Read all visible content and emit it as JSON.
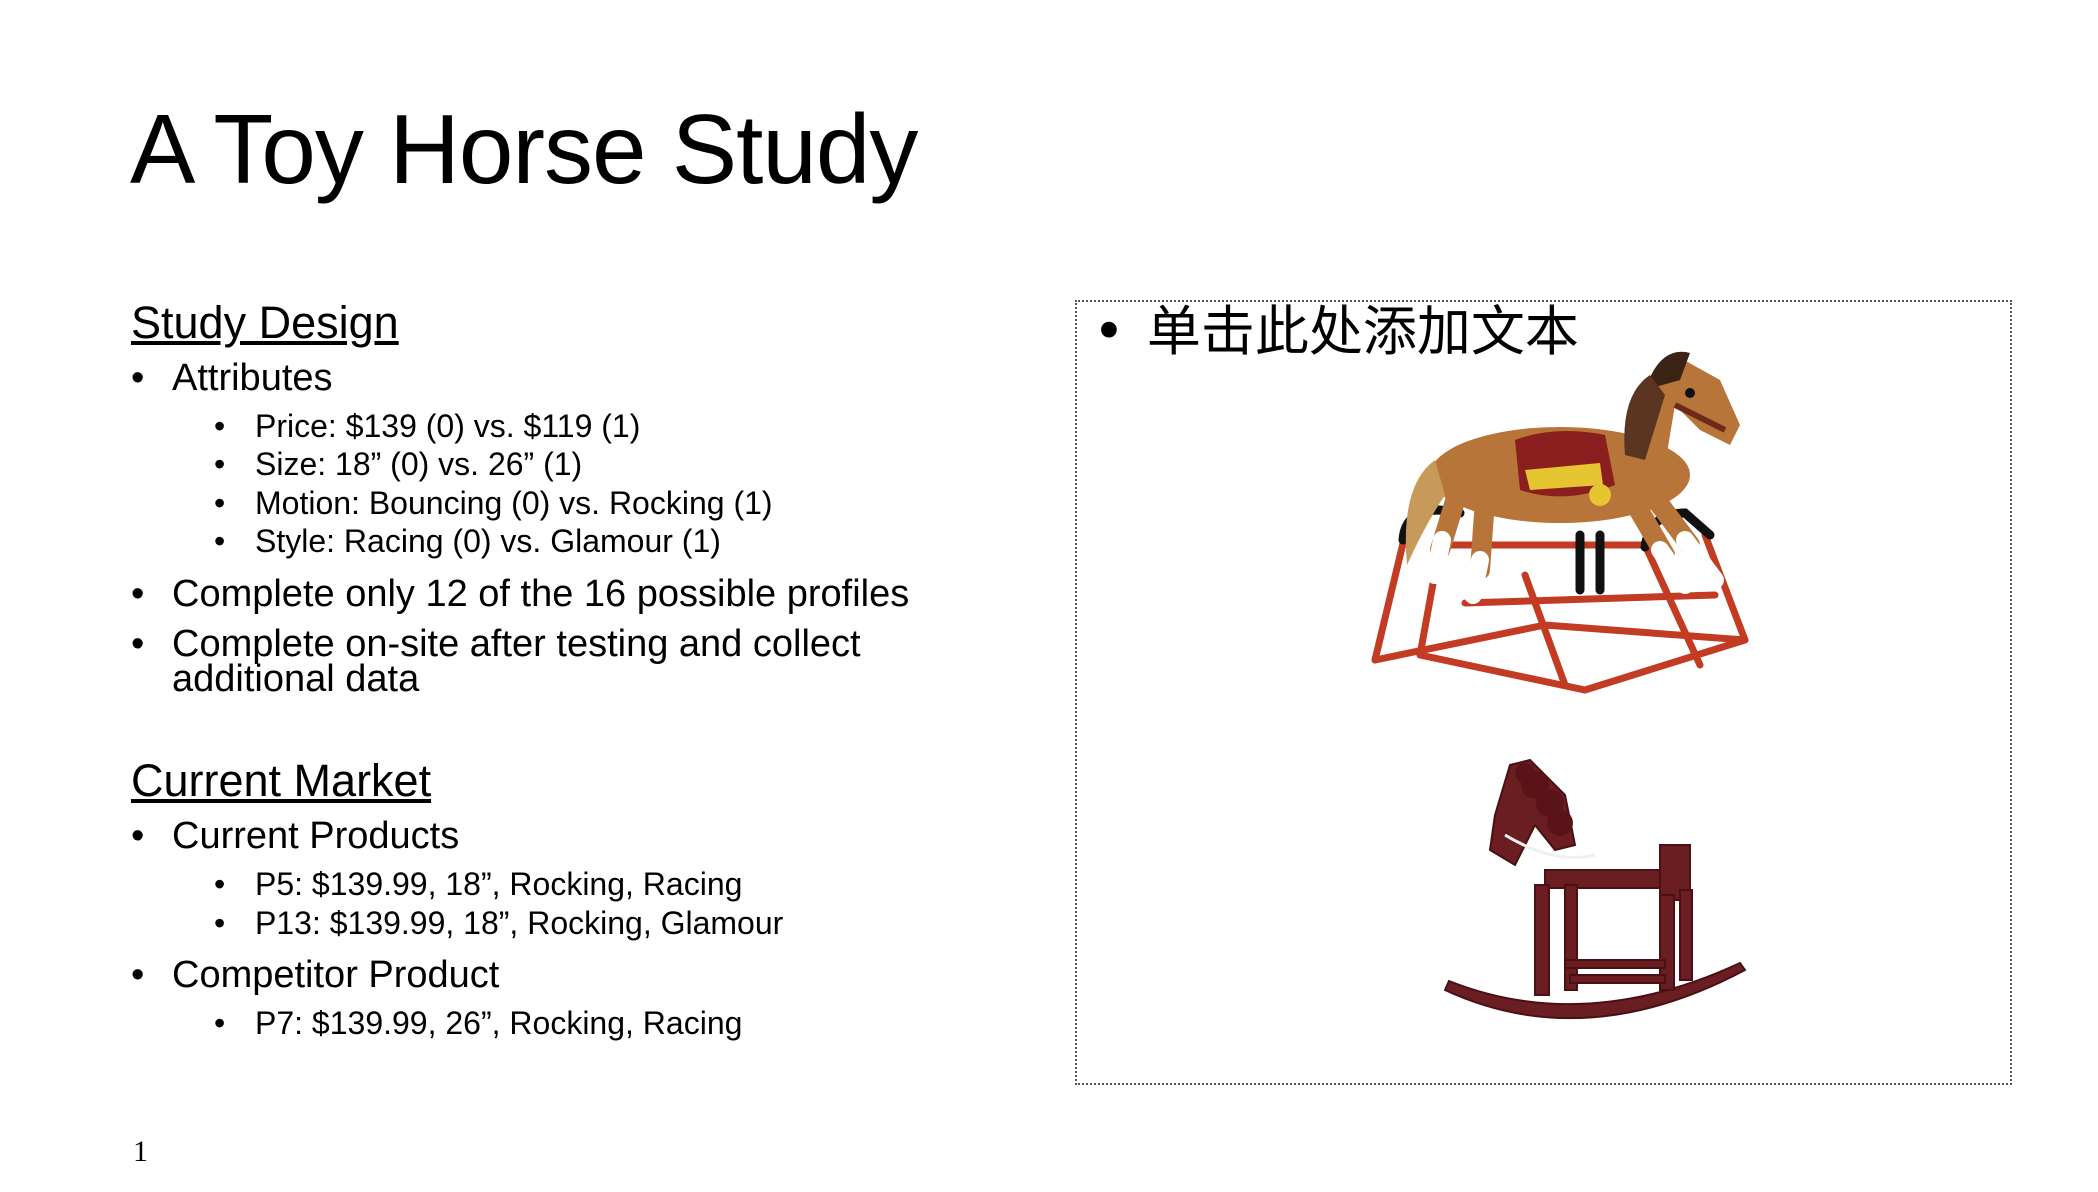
{
  "slide": {
    "title": "A Toy Horse Study",
    "page_number": "1"
  },
  "study_design": {
    "heading": "Study Design",
    "attributes_label": "Attributes",
    "attributes": [
      "Price: $139 (0) vs. $119 (1)",
      "Size: 18” (0) vs. 26” (1)",
      "Motion: Bouncing (0) vs. Rocking (1)",
      "Style: Racing (0) vs. Glamour (1)"
    ],
    "bullet2": "Complete only 12 of the 16 possible profiles",
    "bullet3_line1": "Complete on-site after testing and collect",
    "bullet3_line2": "additional data"
  },
  "current_market": {
    "heading": "Current Market",
    "current_products_label": "Current Products",
    "current_products": [
      "P5: $139.99, 18”, Rocking, Racing",
      "P13: $139.99, 18”, Rocking, Glamour"
    ],
    "competitor_label": "Competitor Product",
    "competitor_products": [
      "P7: $139.99, 26”, Rocking, Racing"
    ]
  },
  "placeholder": {
    "text": "单击此处添加文本"
  },
  "images": {
    "horse1_icon": "spring-rocking-horse-image",
    "horse2_icon": "wooden-rocking-horse-image"
  },
  "colors": {
    "horse_brown": "#b5773a",
    "frame_red": "#c0392b",
    "wood_maroon": "#6a1e22"
  }
}
